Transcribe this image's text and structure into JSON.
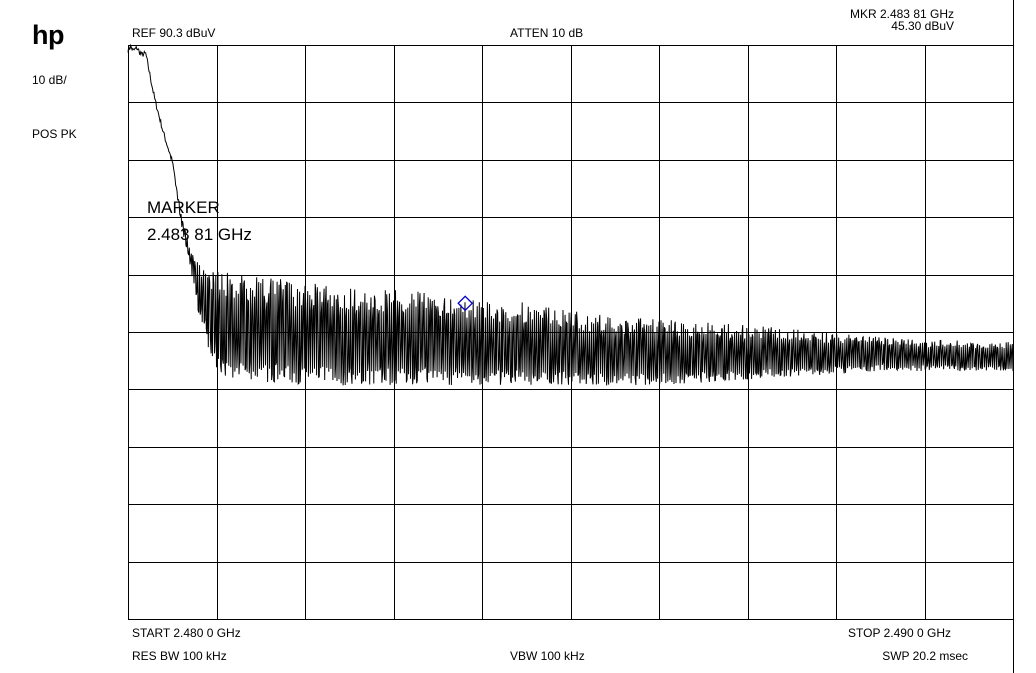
{
  "header": {
    "logo": "hp",
    "ref": "REF  90.3 dBuV",
    "atten": "ATTEN 10 dB",
    "mkr_freq": "MKR 2.483 81 GHz",
    "mkr_level": "45.30 dBuV"
  },
  "left_panel": {
    "scale": "10 dB/",
    "detector": "POS PK"
  },
  "marker_annotation": {
    "line1": "MARKER",
    "line2": "2.483 81 GHz"
  },
  "footer": {
    "start": "START 2.480 0 GHz",
    "stop": "STOP 2.490 0 GHz",
    "rbw": "RES BW 100 kHz",
    "vbw": "VBW 100 kHz",
    "sweep": "SWP 20.2 msec"
  },
  "colors": {
    "trace": "#000000",
    "grid": "#000000",
    "marker": "#0000cc"
  },
  "chart_data": {
    "type": "line",
    "x_unit": "GHz",
    "y_unit": "dBuV",
    "xlim": [
      2.48,
      2.49
    ],
    "ylim": [
      -9.7,
      90.3
    ],
    "grid": true,
    "x_divisions": 10,
    "y_divisions": 10,
    "marker": {
      "x": 2.48381,
      "y": 45.3,
      "shape": "diamond"
    },
    "series": [
      {
        "x": [
          2.48,
          2.48003,
          2.48006,
          2.4801,
          2.48015,
          2.4802,
          2.4803,
          2.4804,
          2.4805,
          2.4806,
          2.4807,
          2.4808,
          2.4809,
          2.481,
          2.4811,
          2.4812,
          2.4814,
          2.4816,
          2.4818,
          2.482,
          2.4822,
          2.4824,
          2.4826,
          2.4828,
          2.483,
          2.4832,
          2.4834,
          2.4836,
          2.4838,
          2.484,
          2.4845,
          2.485,
          2.4855,
          2.486,
          2.4865,
          2.487,
          2.4875,
          2.488,
          2.4885,
          2.489,
          2.4895,
          2.49
        ],
        "peak": [
          89.5,
          90.0,
          89.3,
          89.8,
          88.6,
          88.8,
          81.0,
          75.0,
          70.0,
          61.0,
          55.0,
          52.0,
          51.5,
          51.0,
          50.8,
          50.5,
          50.0,
          49.8,
          49.5,
          49.0,
          48.8,
          48.5,
          48.2,
          48.0,
          47.8,
          47.5,
          47.0,
          46.8,
          46.5,
          46.0,
          45.5,
          44.0,
          43.0,
          42.5,
          42.0,
          41.5,
          41.0,
          40.0,
          39.5,
          39.0,
          38.8,
          38.5
        ],
        "floor": [
          89.5,
          90.0,
          89.3,
          89.8,
          88.6,
          88.8,
          81.0,
          75.0,
          70.0,
          59.0,
          52.0,
          43.0,
          38.0,
          33.5,
          32.0,
          31.5,
          31.5,
          31.5,
          31.3,
          31.2,
          31.2,
          31.0,
          31.0,
          31.0,
          31.0,
          31.0,
          31.0,
          31.0,
          31.0,
          31.0,
          31.0,
          31.0,
          31.0,
          31.0,
          31.5,
          32.0,
          32.5,
          33.0,
          33.5,
          33.5,
          33.5,
          33.5
        ]
      }
    ]
  }
}
